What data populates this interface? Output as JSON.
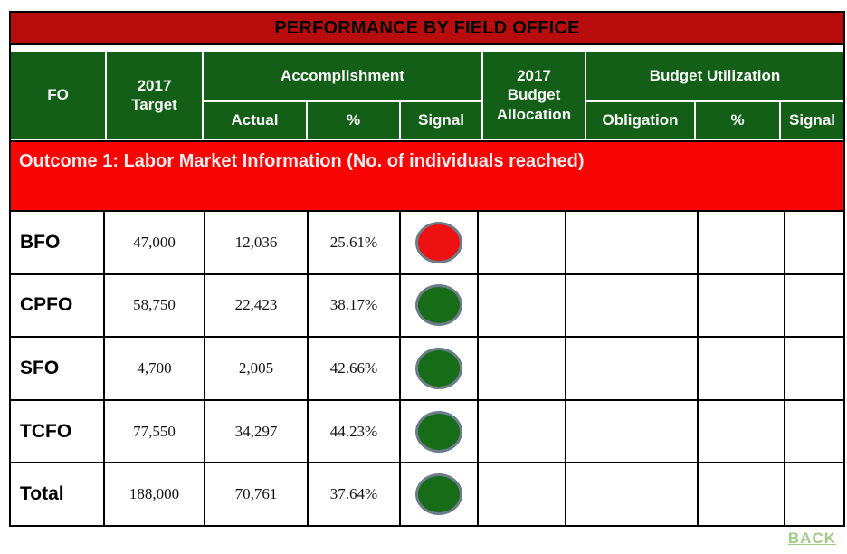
{
  "title_bar": {
    "text": "PERFORMANCE BY FIELD OFFICE"
  },
  "header": {
    "fo": "FO",
    "target_2017": "2017 Target",
    "accomplishment": "Accomplishment",
    "actual": "Actual",
    "percent": "%",
    "signal": "Signal",
    "budget_allocation_2017": "2017 Budget Allocation",
    "budget_utilization": "Budget Utilization",
    "obligation": "Obligation"
  },
  "outcome_banner": {
    "text": "Outcome 1: Labor Market Information (No. of individuals reached)"
  },
  "rows": [
    {
      "fo": "BFO",
      "target": "47,000",
      "actual": "12,036",
      "percent": "25.61%",
      "signal": "red",
      "budget_allocation": "",
      "obligation": "",
      "util_percent": "",
      "util_signal": ""
    },
    {
      "fo": "CPFO",
      "target": "58,750",
      "actual": "22,423",
      "percent": "38.17%",
      "signal": "green",
      "budget_allocation": "",
      "obligation": "",
      "util_percent": "",
      "util_signal": ""
    },
    {
      "fo": "SFO",
      "target": "4,700",
      "actual": "2,005",
      "percent": "42.66%",
      "signal": "green",
      "budget_allocation": "",
      "obligation": "",
      "util_percent": "",
      "util_signal": ""
    },
    {
      "fo": "TCFO",
      "target": "77,550",
      "actual": "34,297",
      "percent": "44.23%",
      "signal": "green",
      "budget_allocation": "",
      "obligation": "",
      "util_percent": "",
      "util_signal": ""
    },
    {
      "fo": "Total",
      "target": "188,000",
      "actual": "70,761",
      "percent": "37.64%",
      "signal": "green",
      "budget_allocation": "",
      "obligation": "",
      "util_percent": "",
      "util_signal": ""
    }
  ],
  "back_link": {
    "label": "BACK"
  },
  "colors": {
    "title_bar_red": "#b90d0d",
    "header_green": "#145f18",
    "outcome_red": "#fa0505",
    "signal_red": "#ee1111",
    "signal_green": "#176c17",
    "signal_outline": "#6d7c8a",
    "back_link_green": "#a1cc86"
  }
}
